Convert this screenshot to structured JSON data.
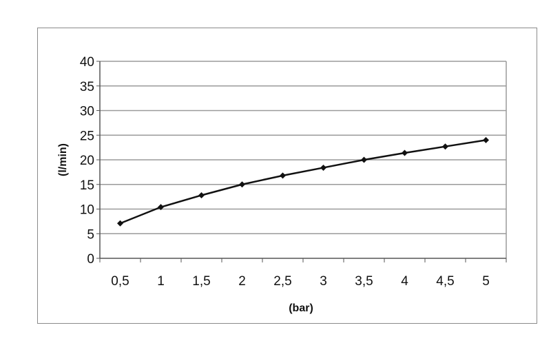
{
  "chart_data": {
    "type": "line",
    "title": "",
    "xlabel": "(bar)",
    "ylabel": "(l/min)",
    "categories": [
      "0,5",
      "1",
      "1,5",
      "2",
      "2,5",
      "3",
      "3,5",
      "4",
      "4,5",
      "5"
    ],
    "x": [
      0.5,
      1,
      1.5,
      2,
      2.5,
      3,
      3.5,
      4,
      4.5,
      5
    ],
    "series": [
      {
        "values": [
          7.1,
          10.4,
          12.8,
          15.0,
          16.8,
          18.4,
          20.0,
          21.4,
          22.7,
          24.0
        ]
      }
    ],
    "ylim": [
      0,
      40
    ],
    "yticks": [
      "0",
      "5",
      "10",
      "15",
      "20",
      "25",
      "30",
      "35",
      "40"
    ],
    "grid": "horizontal",
    "legend": "none",
    "line_color": "#111111",
    "grid_color": "#9a9a9a"
  }
}
